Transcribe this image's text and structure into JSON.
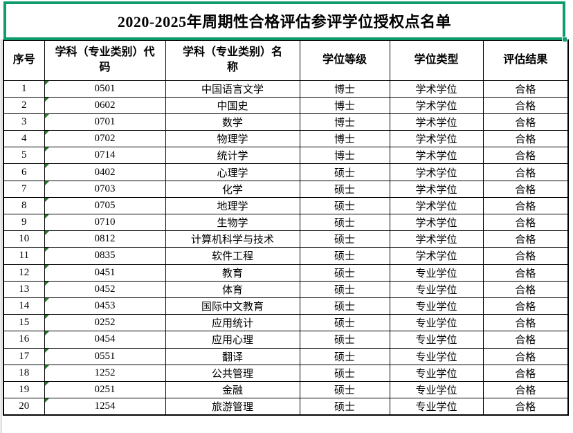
{
  "title": "2020-2025年周期性合格评估参评学位授权点名单",
  "colors": {
    "selection_border": "#0f9b6c",
    "text_indicator": "#1f7d1f",
    "grid_line": "#000000"
  },
  "table": {
    "headers": [
      "序号",
      "学科（专业类别）代码",
      "学科（专业类别）名称",
      "学位等级",
      "学位类型",
      "评估结果"
    ],
    "rows": [
      {
        "no": "1",
        "code": "0501",
        "name": "中国语言文学",
        "level": "博士",
        "type": "学术学位",
        "result": "合格"
      },
      {
        "no": "2",
        "code": "0602",
        "name": "中国史",
        "level": "博士",
        "type": "学术学位",
        "result": "合格"
      },
      {
        "no": "3",
        "code": "0701",
        "name": "数学",
        "level": "博士",
        "type": "学术学位",
        "result": "合格"
      },
      {
        "no": "4",
        "code": "0702",
        "name": "物理学",
        "level": "博士",
        "type": "学术学位",
        "result": "合格"
      },
      {
        "no": "5",
        "code": "0714",
        "name": "统计学",
        "level": "博士",
        "type": "学术学位",
        "result": "合格"
      },
      {
        "no": "6",
        "code": "0402",
        "name": "心理学",
        "level": "硕士",
        "type": "学术学位",
        "result": "合格"
      },
      {
        "no": "7",
        "code": "0703",
        "name": "化学",
        "level": "硕士",
        "type": "学术学位",
        "result": "合格"
      },
      {
        "no": "8",
        "code": "0705",
        "name": "地理学",
        "level": "硕士",
        "type": "学术学位",
        "result": "合格"
      },
      {
        "no": "9",
        "code": "0710",
        "name": "生物学",
        "level": "硕士",
        "type": "学术学位",
        "result": "合格"
      },
      {
        "no": "10",
        "code": "0812",
        "name": "计算机科学与技术",
        "level": "硕士",
        "type": "学术学位",
        "result": "合格"
      },
      {
        "no": "11",
        "code": "0835",
        "name": "软件工程",
        "level": "硕士",
        "type": "学术学位",
        "result": "合格"
      },
      {
        "no": "12",
        "code": "0451",
        "name": "教育",
        "level": "硕士",
        "type": "专业学位",
        "result": "合格"
      },
      {
        "no": "13",
        "code": "0452",
        "name": "体育",
        "level": "硕士",
        "type": "专业学位",
        "result": "合格"
      },
      {
        "no": "14",
        "code": "0453",
        "name": "国际中文教育",
        "level": "硕士",
        "type": "专业学位",
        "result": "合格"
      },
      {
        "no": "15",
        "code": "0252",
        "name": "应用统计",
        "level": "硕士",
        "type": "专业学位",
        "result": "合格"
      },
      {
        "no": "16",
        "code": "0454",
        "name": "应用心理",
        "level": "硕士",
        "type": "专业学位",
        "result": "合格"
      },
      {
        "no": "17",
        "code": "0551",
        "name": "翻译",
        "level": "硕士",
        "type": "专业学位",
        "result": "合格"
      },
      {
        "no": "18",
        "code": "1252",
        "name": "公共管理",
        "level": "硕士",
        "type": "专业学位",
        "result": "合格"
      },
      {
        "no": "19",
        "code": "0251",
        "name": "金融",
        "level": "硕士",
        "type": "专业学位",
        "result": "合格"
      },
      {
        "no": "20",
        "code": "1254",
        "name": "旅游管理",
        "level": "硕士",
        "type": "专业学位",
        "result": "合格"
      }
    ]
  }
}
